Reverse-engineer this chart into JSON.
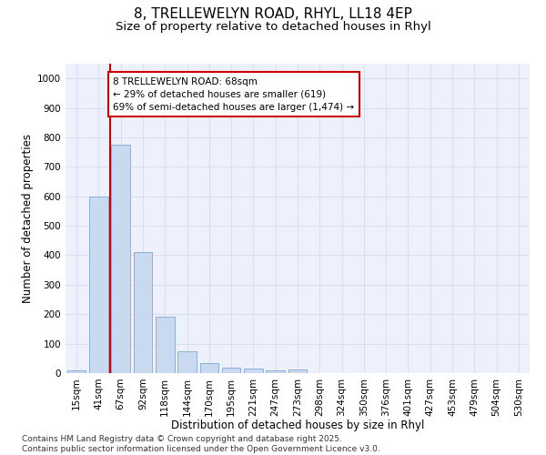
{
  "title_line1": "8, TRELLEWELYN ROAD, RHYL, LL18 4EP",
  "title_line2": "Size of property relative to detached houses in Rhyl",
  "xlabel": "Distribution of detached houses by size in Rhyl",
  "ylabel": "Number of detached properties",
  "categories": [
    "15sqm",
    "41sqm",
    "67sqm",
    "92sqm",
    "118sqm",
    "144sqm",
    "170sqm",
    "195sqm",
    "221sqm",
    "247sqm",
    "273sqm",
    "298sqm",
    "324sqm",
    "350sqm",
    "376sqm",
    "401sqm",
    "427sqm",
    "453sqm",
    "479sqm",
    "504sqm",
    "530sqm"
  ],
  "values": [
    10,
    600,
    775,
    410,
    190,
    75,
    35,
    18,
    15,
    10,
    12,
    0,
    0,
    0,
    0,
    0,
    0,
    0,
    0,
    0,
    0
  ],
  "bar_color": "#c9d9f0",
  "bar_edge_color": "#7da8d8",
  "vline_x_idx": 2,
  "vline_color": "#cc0000",
  "annotation_text_line1": "8 TRELLEWELYN ROAD: 68sqm",
  "annotation_text_line2": "← 29% of detached houses are smaller (619)",
  "annotation_text_line3": "69% of semi-detached houses are larger (1,474) →",
  "annotation_box_color": "#cc0000",
  "annotation_fill": "white",
  "ylim": [
    0,
    1050
  ],
  "yticks": [
    0,
    100,
    200,
    300,
    400,
    500,
    600,
    700,
    800,
    900,
    1000
  ],
  "grid_color": "#d8dff0",
  "background_color": "#eef1fb",
  "footer": "Contains HM Land Registry data © Crown copyright and database right 2025.\nContains public sector information licensed under the Open Government Licence v3.0.",
  "title_fontsize": 11,
  "subtitle_fontsize": 9.5,
  "axis_label_fontsize": 8.5,
  "tick_fontsize": 7.5,
  "footer_fontsize": 6.5,
  "annot_fontsize": 7.5
}
